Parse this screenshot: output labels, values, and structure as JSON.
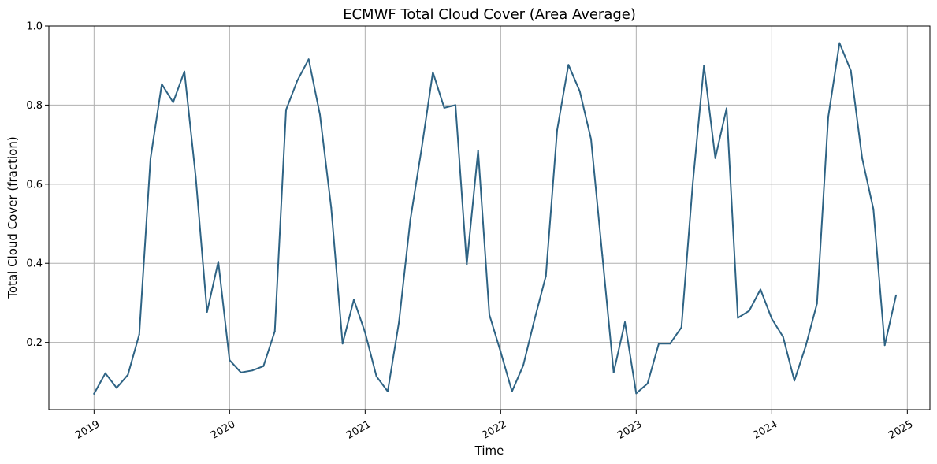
{
  "chart_data": {
    "type": "line",
    "title": "ECMWF Total Cloud Cover (Area Average)",
    "xlabel": "Time",
    "ylabel": "Total Cloud Cover (fraction)",
    "x_ticks": [
      "2019",
      "2020",
      "2021",
      "2022",
      "2023",
      "2024",
      "2025"
    ],
    "y_ticks": [
      "0.2",
      "0.4",
      "0.6",
      "0.8",
      "1.0"
    ],
    "xlim": [
      "2018-09",
      "2025-03"
    ],
    "ylim": [
      0.03,
      1.0
    ],
    "grid": true,
    "line_color": "#2e6384",
    "series": [
      {
        "x": [
          "2019-01",
          "2019-02",
          "2019-03",
          "2019-04",
          "2019-05",
          "2019-06",
          "2019-07",
          "2019-08",
          "2019-09",
          "2019-10",
          "2019-11",
          "2019-12",
          "2020-01",
          "2020-02",
          "2020-03",
          "2020-04",
          "2020-05",
          "2020-06",
          "2020-07",
          "2020-08",
          "2020-09",
          "2020-10",
          "2020-11",
          "2020-12",
          "2021-01",
          "2021-02",
          "2021-03",
          "2021-04",
          "2021-05",
          "2021-06",
          "2021-07",
          "2021-08",
          "2021-09",
          "2021-10",
          "2021-11",
          "2021-12",
          "2022-01",
          "2022-02",
          "2022-03",
          "2022-04",
          "2022-05",
          "2022-06",
          "2022-07",
          "2022-08",
          "2022-09",
          "2022-10",
          "2022-11",
          "2022-12",
          "2023-01",
          "2023-02",
          "2023-03",
          "2023-04",
          "2023-05",
          "2023-06",
          "2023-07",
          "2023-08",
          "2023-09",
          "2023-10",
          "2023-11",
          "2023-12",
          "2024-01",
          "2024-02",
          "2024-03",
          "2024-04",
          "2024-05",
          "2024-06",
          "2024-07",
          "2024-08",
          "2024-09",
          "2024-10",
          "2024-11",
          "2024-12"
        ],
        "values": [
          0.07,
          0.122,
          0.085,
          0.118,
          0.22,
          0.665,
          0.853,
          0.807,
          0.885,
          0.62,
          0.277,
          0.404,
          0.155,
          0.124,
          0.129,
          0.14,
          0.228,
          0.788,
          0.862,
          0.916,
          0.776,
          0.54,
          0.197,
          0.308,
          0.225,
          0.114,
          0.076,
          0.252,
          0.51,
          0.69,
          0.883,
          0.793,
          0.8,
          0.397,
          0.685,
          0.27,
          0.176,
          0.076,
          0.142,
          0.258,
          0.368,
          0.737,
          0.902,
          0.835,
          0.714,
          0.42,
          0.124,
          0.251,
          0.071,
          0.096,
          0.197,
          0.197,
          0.238,
          0.6,
          0.9,
          0.666,
          0.792,
          0.262,
          0.28,
          0.334,
          0.26,
          0.214,
          0.103,
          0.19,
          0.298,
          0.77,
          0.957,
          0.887,
          0.666,
          0.537,
          0.193,
          0.319
        ]
      }
    ]
  }
}
